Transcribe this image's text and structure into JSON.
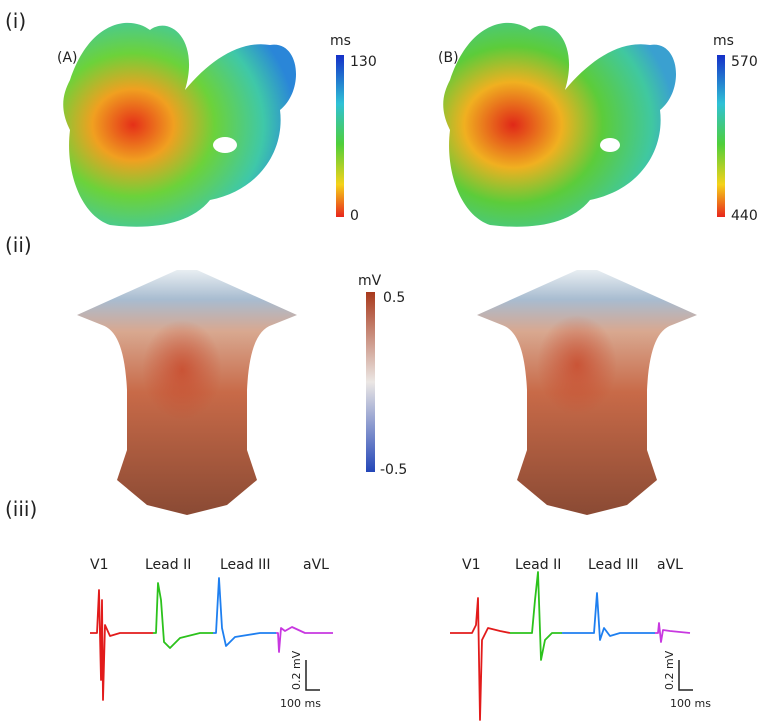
{
  "panels": [
    {
      "label": "(i)",
      "maps": [
        {
          "label": "(A)",
          "colorbar": {
            "unit": "ms",
            "top": "130",
            "bottom": "0"
          }
        },
        {
          "label": "(B)",
          "colorbar": {
            "unit": "ms",
            "top": "570",
            "bottom": "440"
          }
        }
      ]
    },
    {
      "label": "(ii)",
      "colorbar": {
        "unit": "mV",
        "top": "0.5",
        "bottom": "-0.5"
      }
    },
    {
      "label": "(iii)",
      "ecgs": [
        {
          "leads": [
            "V1",
            "Lead II",
            "Lead III",
            "aVL"
          ],
          "scale_y": "0.2 mV",
          "scale_x": "100 ms"
        },
        {
          "leads": [
            "V1",
            "Lead II",
            "Lead III",
            "aVL"
          ],
          "scale_y": "0.2 mV",
          "scale_x": "100 ms"
        }
      ]
    }
  ]
}
